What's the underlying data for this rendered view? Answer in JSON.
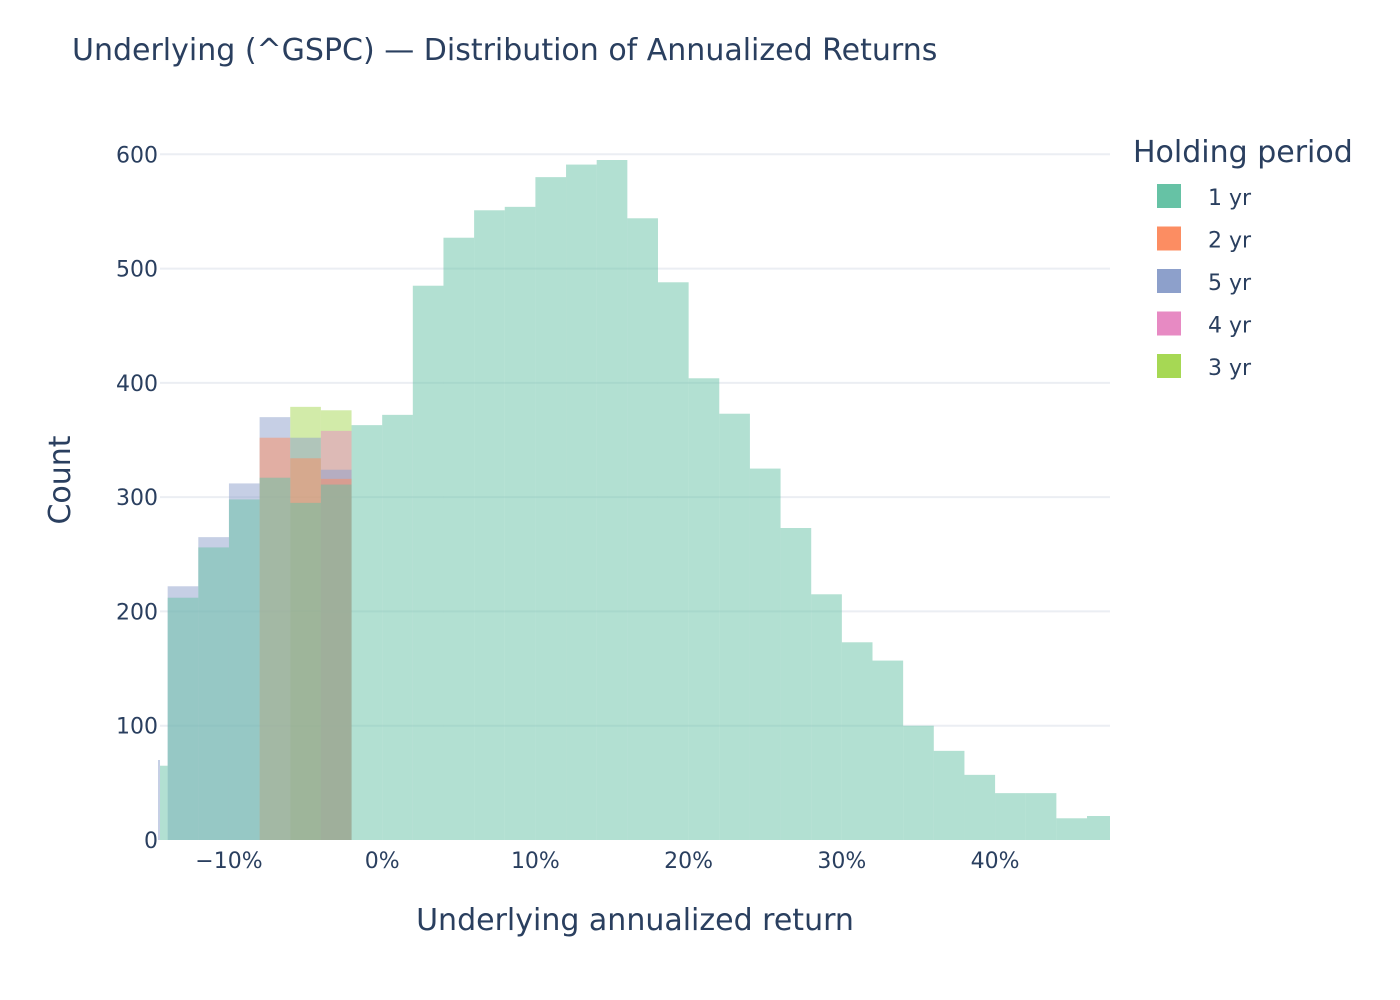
{
  "chart_data": {
    "type": "histogram",
    "title": "Underlying (^GSPC) — Distribution of Annualized Returns",
    "xlabel": "Underlying annualized return",
    "ylabel": "Count",
    "xlim": [
      -0.145,
      0.475
    ],
    "ylim": [
      0,
      630
    ],
    "x_ticks": [
      {
        "value": -0.1,
        "label": "−10%"
      },
      {
        "value": 0.0,
        "label": "0%"
      },
      {
        "value": 0.1,
        "label": "10%"
      },
      {
        "value": 0.2,
        "label": "20%"
      },
      {
        "value": 0.3,
        "label": "30%"
      },
      {
        "value": 0.4,
        "label": "40%"
      }
    ],
    "y_ticks": [
      {
        "value": 0,
        "label": "0"
      },
      {
        "value": 100,
        "label": "100"
      },
      {
        "value": 200,
        "label": "200"
      },
      {
        "value": 300,
        "label": "300"
      },
      {
        "value": 400,
        "label": "400"
      },
      {
        "value": 500,
        "label": "500"
      },
      {
        "value": 600,
        "label": "600"
      }
    ],
    "grid": true,
    "barmode": "overlay",
    "opacity": 0.5,
    "legend": {
      "title": "Holding period",
      "placement": "right"
    },
    "series": [
      {
        "name": "1 yr",
        "color": "#66c2a5",
        "bin_edges": [
          -0.145,
          -0.14,
          -0.12,
          -0.1,
          -0.08,
          -0.06,
          -0.04,
          -0.02,
          0.0,
          0.02,
          0.04,
          0.06,
          0.08,
          0.1,
          0.12,
          0.14,
          0.16,
          0.18,
          0.2,
          0.22,
          0.24,
          0.26,
          0.28,
          0.3,
          0.32,
          0.34,
          0.36,
          0.38,
          0.4,
          0.42,
          0.44,
          0.46,
          0.475
        ],
        "counts": [
          65,
          212,
          256,
          298,
          317,
          295,
          311,
          363,
          372,
          485,
          527,
          551,
          554,
          580,
          591,
          595,
          544,
          488,
          404,
          373,
          325,
          273,
          215,
          173,
          157,
          100,
          78,
          57,
          41,
          41,
          19,
          21
        ]
      },
      {
        "name": "2 yr",
        "color": "#fc8d62",
        "bins": [
          {
            "x0": -0.08,
            "x1": -0.06,
            "count": 352
          },
          {
            "x0": -0.06,
            "x1": -0.04,
            "count": 334
          },
          {
            "x0": -0.04,
            "x1": -0.02,
            "count": 316
          }
        ]
      },
      {
        "name": "5 yr",
        "color": "#8da0cb",
        "bins": [
          {
            "x0": -0.149,
            "x1": -0.145,
            "count": 70
          },
          {
            "x0": -0.14,
            "x1": -0.12,
            "count": 222
          },
          {
            "x0": -0.12,
            "x1": -0.1,
            "count": 265
          },
          {
            "x0": -0.1,
            "x1": -0.08,
            "count": 312
          },
          {
            "x0": -0.08,
            "x1": -0.06,
            "count": 370
          },
          {
            "x0": -0.06,
            "x1": -0.04,
            "count": 352
          },
          {
            "x0": -0.04,
            "x1": -0.02,
            "count": 324
          }
        ]
      },
      {
        "name": "4 yr",
        "color": "#e78ac3",
        "bins": [
          {
            "x0": -0.04,
            "x1": -0.02,
            "count": 358
          }
        ]
      },
      {
        "name": "3 yr",
        "color": "#a6d854",
        "bins": [
          {
            "x0": -0.06,
            "x1": -0.04,
            "count": 379
          },
          {
            "x0": -0.04,
            "x1": -0.02,
            "count": 376
          }
        ]
      }
    ]
  }
}
